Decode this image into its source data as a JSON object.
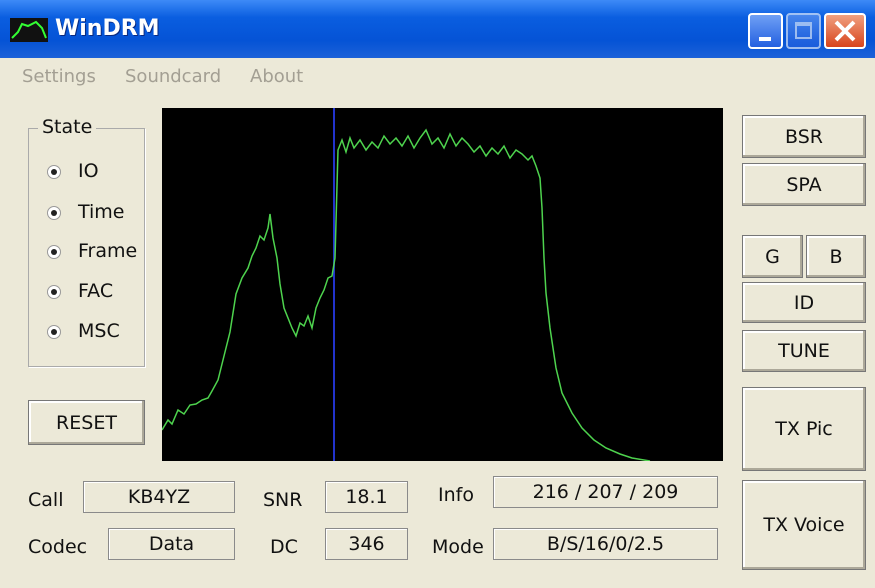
{
  "window": {
    "title": "WinDRM"
  },
  "menu": [
    "Settings",
    "Soundcard",
    "About"
  ],
  "state": {
    "label": "State",
    "options": [
      "IO",
      "Time",
      "Frame",
      "FAC",
      "MSC"
    ]
  },
  "buttons": {
    "reset": "RESET",
    "bsr": "BSR",
    "spa": "SPA",
    "g": "G",
    "b": "B",
    "id": "ID",
    "tune": "TUNE",
    "tx_pic": "TX Pic",
    "tx_voice": "TX Voice"
  },
  "fields": [
    {
      "label": "Call",
      "value": "KB4YZ"
    },
    {
      "label": "SNR",
      "value": "18.1"
    },
    {
      "label": "Info",
      "value": "216 / 207 / 209"
    },
    {
      "label": "Codec",
      "value": "Data"
    },
    {
      "label": "DC",
      "value": "346"
    },
    {
      "label": "Mode",
      "value": "B/S/16/0/2.5"
    }
  ]
}
